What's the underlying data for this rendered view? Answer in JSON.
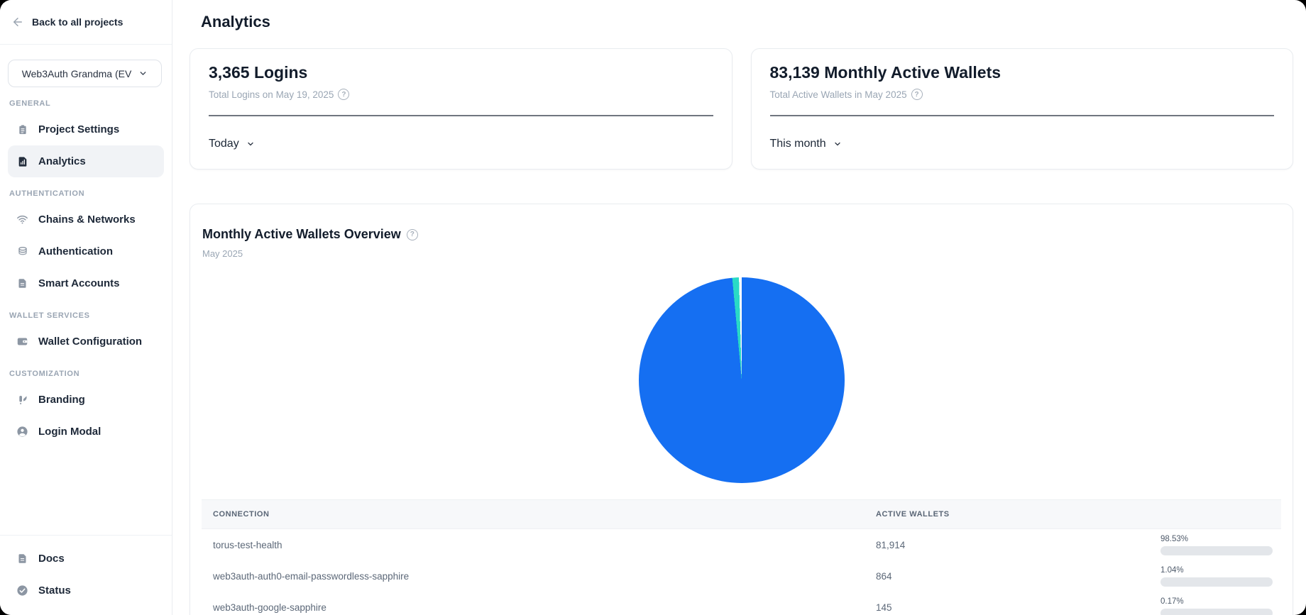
{
  "sidebar": {
    "back_label": "Back to all projects",
    "project_selector": {
      "value": "Web3Auth Grandma (EV"
    },
    "sections": [
      {
        "label": "GENERAL",
        "items": [
          {
            "label": "Project Settings",
            "icon": "clipboard-icon",
            "active": false
          },
          {
            "label": "Analytics",
            "icon": "bar-chart-icon",
            "active": true
          }
        ]
      },
      {
        "label": "AUTHENTICATION",
        "items": [
          {
            "label": "Chains & Networks",
            "icon": "wifi-icon",
            "active": false
          },
          {
            "label": "Authentication",
            "icon": "database-icon",
            "active": false
          },
          {
            "label": "Smart Accounts",
            "icon": "file-icon",
            "active": false
          }
        ]
      },
      {
        "label": "WALLET SERVICES",
        "items": [
          {
            "label": "Wallet Configuration",
            "icon": "wallet-icon",
            "active": false
          }
        ]
      },
      {
        "label": "CUSTOMIZATION",
        "items": [
          {
            "label": "Branding",
            "icon": "brush-icon",
            "active": false
          },
          {
            "label": "Login Modal",
            "icon": "user-circle-icon",
            "active": false
          }
        ]
      }
    ],
    "footer_items": [
      {
        "label": "Docs",
        "icon": "doc-icon"
      },
      {
        "label": "Status",
        "icon": "check-circle-icon"
      }
    ]
  },
  "main": {
    "title": "Analytics",
    "stat_cards": [
      {
        "heading": "3,365 Logins",
        "subtext": "Total Logins on May 19, 2025",
        "dropdown_value": "Today"
      },
      {
        "heading": "83,139 Monthly Active Wallets",
        "subtext": "Total Active Wallets in May 2025",
        "dropdown_value": "This month"
      }
    ],
    "overview": {
      "title": "Monthly Active Wallets Overview",
      "subtitle": "May 2025",
      "table": {
        "columns": [
          "CONNECTION",
          "ACTIVE WALLETS"
        ],
        "rows": [
          {
            "connection": "torus-test-health",
            "wallets": "81,914",
            "pct_label": "98.53%",
            "pct": 98.53,
            "color": "#156ff2"
          },
          {
            "connection": "web3auth-auth0-email-passwordless-sapphire",
            "wallets": "864",
            "pct_label": "1.04%",
            "pct": 1.04,
            "color": "#29dac6"
          },
          {
            "connection": "web3auth-google-sapphire",
            "wallets": "145",
            "pct_label": "0.17%",
            "pct": 0.17,
            "color": "#29dac6"
          }
        ]
      }
    }
  },
  "chart_data": {
    "type": "pie",
    "title": "Monthly Active Wallets Overview",
    "subtitle": "May 2025",
    "total_monthly_active_wallets": 83139,
    "slices": [
      {
        "label": "torus-test-health",
        "value": 81914,
        "pct": 98.53,
        "color": "#156ff2"
      },
      {
        "label": "web3auth-auth0-email-passwordless-sapphire",
        "value": 864,
        "pct": 1.04,
        "color": "#29dac6"
      },
      {
        "label": "web3auth-google-sapphire",
        "value": 145,
        "pct": 0.17,
        "color": "#ffffff"
      }
    ],
    "legend_position": "none"
  },
  "colors": {
    "accent_blue": "#156ff2",
    "accent_teal": "#29dac6",
    "bar_track": "#e3e6ea",
    "sidebar_active_bg": "#f1f3f6"
  }
}
